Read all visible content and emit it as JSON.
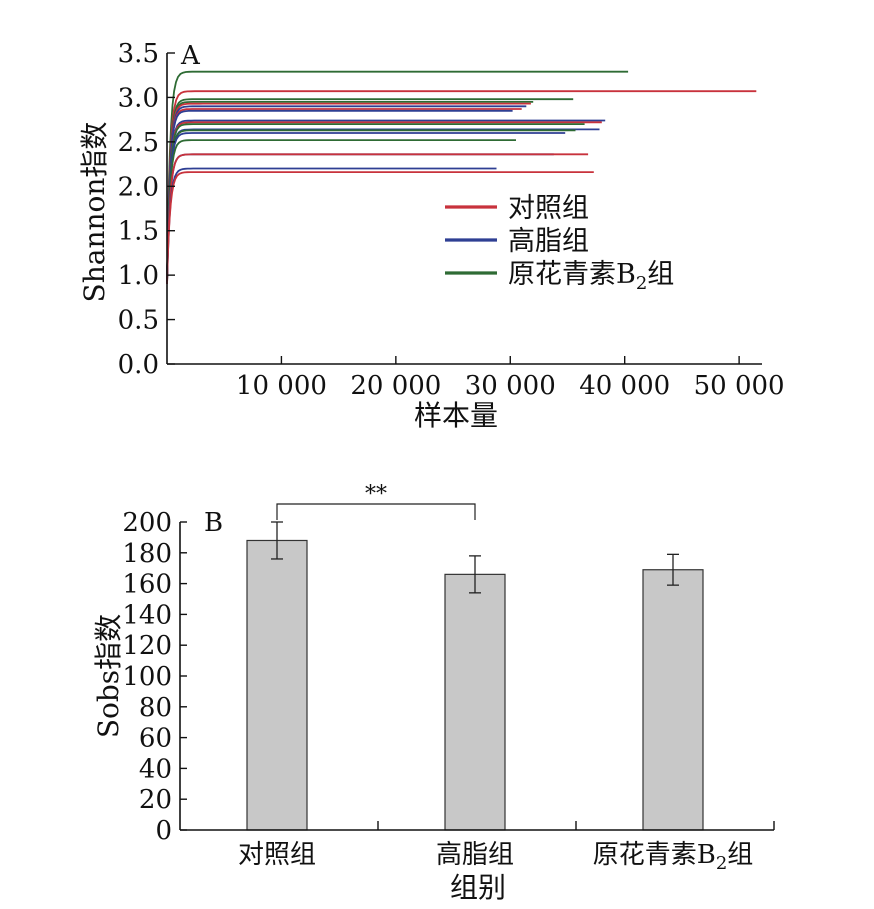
{
  "chart_data": [
    {
      "panel": "A",
      "type": "line",
      "xlabel": "样本量",
      "ylabel": "Shannon指数",
      "xlim": [
        0,
        52000
      ],
      "ylim": [
        0,
        3.5
      ],
      "xticks": [
        10000,
        20000,
        30000,
        40000,
        50000
      ],
      "xtick_labels": [
        "10 000",
        "20 000",
        "30 000",
        "40 000",
        "50 000"
      ],
      "yticks": [
        0,
        0.5,
        1,
        1.5,
        2,
        2.5,
        3,
        3.5
      ],
      "ytick_labels": [
        "0.0",
        "0.5",
        "1.0",
        "1.5",
        "2.0",
        "2.5",
        "3.0",
        "3.5"
      ],
      "legend": {
        "position": "center-right",
        "entries": [
          {
            "label": "对照组",
            "color": "#c8323c"
          },
          {
            "label": "高脂组",
            "color": "#2e3f93"
          },
          {
            "label_main": "原花青素B",
            "label_sub": "2",
            "label_tail": "组",
            "color": "#2e6b34"
          }
        ]
      },
      "series": [
        {
          "group": "原花青素B2组",
          "color": "#2e6b34",
          "plateau": 3.29,
          "max_x": 40300
        },
        {
          "group": "对照组",
          "color": "#c8323c",
          "plateau": 3.07,
          "max_x": 51500
        },
        {
          "group": "原花青素B2组",
          "color": "#2e6b34",
          "plateau": 2.98,
          "max_x": 35500
        },
        {
          "group": "原花青素B2组",
          "color": "#2e6b34",
          "plateau": 2.95,
          "max_x": 32000
        },
        {
          "group": "对照组",
          "color": "#c8323c",
          "plateau": 2.93,
          "max_x": 31800
        },
        {
          "group": "高脂组",
          "color": "#2e3f93",
          "plateau": 2.9,
          "max_x": 31400
        },
        {
          "group": "对照组",
          "color": "#c8323c",
          "plateau": 2.87,
          "max_x": 31000
        },
        {
          "group": "高脂组",
          "color": "#2e3f93",
          "plateau": 2.85,
          "max_x": 30200
        },
        {
          "group": "高脂组",
          "color": "#2e3f93",
          "plateau": 2.74,
          "max_x": 38300
        },
        {
          "group": "对照组",
          "color": "#c8323c",
          "plateau": 2.72,
          "max_x": 38000
        },
        {
          "group": "原花青素B2组",
          "color": "#2e6b34",
          "plateau": 2.7,
          "max_x": 36500
        },
        {
          "group": "高脂组",
          "color": "#2e3f93",
          "plateau": 2.64,
          "max_x": 37800
        },
        {
          "group": "原花青素B2组",
          "color": "#2e6b34",
          "plateau": 2.63,
          "max_x": 35700
        },
        {
          "group": "高脂组",
          "color": "#2e3f93",
          "plateau": 2.6,
          "max_x": 34800
        },
        {
          "group": "原花青素B2组",
          "color": "#2e6b34",
          "plateau": 2.52,
          "max_x": 30500
        },
        {
          "group": "高脂组",
          "color": "#2e3f93",
          "plateau": 2.36,
          "max_x": 33800
        },
        {
          "group": "对照组",
          "color": "#c8323c",
          "plateau": 2.36,
          "max_x": 36800
        },
        {
          "group": "高脂组",
          "color": "#2e3f93",
          "plateau": 2.2,
          "max_x": 28800
        },
        {
          "group": "对照组",
          "color": "#c8323c",
          "plateau": 2.16,
          "max_x": 37300
        }
      ]
    },
    {
      "panel": "B",
      "type": "bar",
      "xlabel": "组别",
      "ylabel": "Sobs指数",
      "ylim": [
        0,
        200
      ],
      "yticks": [
        0,
        20,
        40,
        60,
        80,
        100,
        120,
        140,
        160,
        180,
        200
      ],
      "ytick_labels": [
        "0",
        "20",
        "40",
        "60",
        "80",
        "100",
        "120",
        "140",
        "160",
        "180",
        "200"
      ],
      "categories": [
        {
          "label_main": "对照组",
          "label_sub": "",
          "label_tail": ""
        },
        {
          "label_main": "高脂组",
          "label_sub": "",
          "label_tail": ""
        },
        {
          "label_main": "原花青素B",
          "label_sub": "2",
          "label_tail": "组"
        }
      ],
      "values": [
        188,
        166,
        169
      ],
      "errors": [
        12,
        12,
        10
      ],
      "bar_color": "#c8c8c8",
      "significance": {
        "from": 0,
        "to": 1,
        "label": "**"
      }
    }
  ]
}
